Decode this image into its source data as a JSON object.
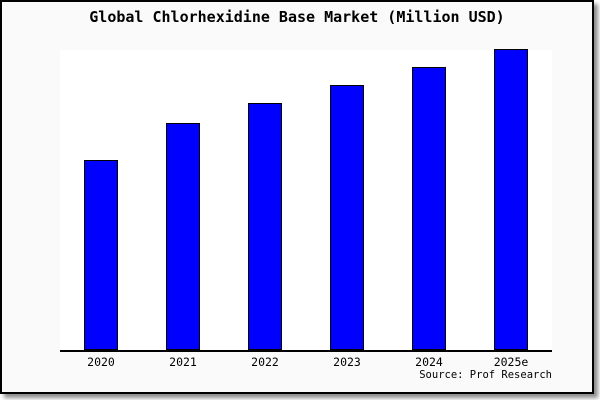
{
  "window": {
    "background": "#fafafa",
    "frame_border_color": "#000000"
  },
  "chart_data": {
    "type": "bar",
    "title": "Global Chlorhexidine Base Market (Million USD)",
    "categories": [
      "2020",
      "2021",
      "2022",
      "2023",
      "2024",
      "2025e"
    ],
    "values": [
      63.0,
      75.3,
      81.8,
      87.9,
      94.0,
      100.0
    ],
    "value_scale": "relative bar height, tallest bar (2025e) = 100; chart displays no y-axis, ticks, gridlines or value labels",
    "xlabel": "",
    "ylabel": "",
    "ylim": [
      0,
      100
    ],
    "grid": false,
    "legend": false,
    "plot_background": "#ffffff",
    "bar_fill": "#0000ff",
    "bar_stroke": "#000000",
    "axis_color": "#000000",
    "source": "Source: Prof Research"
  }
}
